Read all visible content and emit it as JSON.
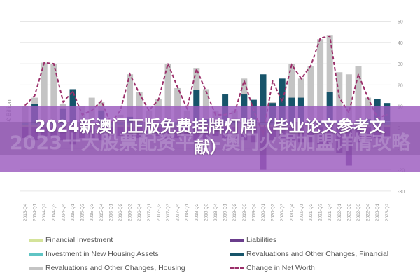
{
  "chart_data": {
    "type": "bar",
    "ylabel": "€ Billion",
    "ylim": [
      -30,
      50
    ],
    "yticks": [
      50,
      40,
      30,
      20,
      10,
      0,
      -10,
      -20,
      -30
    ],
    "grid": true,
    "legend_position": "bottom",
    "categories": [
      "2013-Q4",
      "2014-Q1",
      "2014-Q2",
      "2014-Q3",
      "2014-Q4",
      "2015-Q1",
      "2015-Q2",
      "2015-Q3",
      "2015-Q4",
      "2016-Q1",
      "2016-Q2",
      "2016-Q3",
      "2016-Q4",
      "2017-Q1",
      "2017-Q2",
      "2017-Q3",
      "2017-Q4",
      "2018-Q1",
      "2018-Q2",
      "2018-Q3",
      "2018-Q4",
      "2019-Q1",
      "2019-Q2",
      "2019-Q3",
      "2019-Q4",
      "2020-Q1",
      "2020-Q2",
      "2020-Q3",
      "2020-Q4",
      "2021-Q1",
      "2021-Q2",
      "2021-Q3",
      "2021-Q4",
      "2022-Q1",
      "2022-Q2",
      "2022-Q3",
      "2022-Q4",
      "2023-Q1",
      "2023-Q2"
    ],
    "series": [
      {
        "name": "Financial Investment",
        "kind": "bar",
        "color": "#d4e39a",
        "values": [
          1,
          1,
          1,
          1,
          1,
          1,
          1,
          1,
          1,
          1,
          1,
          1,
          1,
          1,
          1,
          1,
          1,
          1,
          1,
          1,
          1,
          1,
          1,
          1,
          1,
          1,
          1,
          1,
          1,
          1,
          1,
          1,
          1,
          1,
          1,
          1,
          1,
          1,
          1
        ]
      },
      {
        "name": "Investment in New Housing Assets",
        "kind": "bar",
        "color": "#5fc4c4",
        "values": [
          1,
          1,
          1,
          1,
          1,
          1,
          1,
          1,
          1,
          1,
          1,
          1,
          1,
          1,
          1,
          1,
          1,
          1,
          1,
          1,
          1,
          1,
          1,
          1,
          1,
          1,
          1,
          1,
          1,
          1,
          1,
          1,
          1,
          2,
          2,
          2,
          2,
          2,
          2
        ]
      },
      {
        "name": "Revaluations and Other Changes, Housing",
        "kind": "bar",
        "color": "#c4c4c4",
        "values": [
          10,
          14,
          30.5,
          30,
          11,
          5,
          10,
          14,
          12,
          3,
          6,
          25,
          16.5,
          8,
          13.5,
          30,
          18.5,
          8,
          28,
          18,
          8,
          5,
          8,
          23,
          10,
          3,
          12,
          12,
          30,
          23,
          29,
          41.5,
          43.5,
          26,
          25,
          29,
          14,
          5,
          5
        ]
      },
      {
        "name": "Revaluations and Other Changes, Financial",
        "kind": "bar",
        "color": "#17546a",
        "values": [
          0,
          11,
          2,
          1,
          9,
          18,
          0,
          0,
          8,
          0,
          2,
          5,
          2,
          2,
          1,
          3,
          2,
          2,
          17.5,
          4,
          2,
          15.5,
          3,
          15.5,
          13,
          25,
          11.5,
          23,
          14,
          14,
          3,
          3,
          16.5,
          3,
          2,
          3,
          4,
          13.5,
          11.5
        ]
      },
      {
        "name": "Liabilities",
        "kind": "bar",
        "color": "#6a3d8c",
        "values": [
          -5,
          -6,
          -4,
          -4,
          -6,
          -8,
          -5,
          -5,
          -6,
          -4,
          -4,
          -5,
          -5,
          -4,
          -4,
          -5,
          -5,
          -4,
          -6,
          -6,
          -4,
          -5,
          -5,
          -6,
          -7,
          -20,
          -6,
          -6,
          -7,
          -7,
          -7,
          -8,
          -8,
          -12,
          -18,
          -7,
          -7,
          -5,
          -5
        ]
      },
      {
        "name": "Change in Net Worth",
        "kind": "line",
        "color": "#9b2f6a",
        "values": [
          10.5,
          15,
          30.5,
          30,
          12,
          17,
          6,
          8,
          12.5,
          2,
          8,
          25,
          16,
          8,
          13,
          30,
          19,
          9,
          27.5,
          17,
          6,
          6,
          7,
          22,
          8,
          -3,
          22,
          12,
          29.5,
          23,
          29,
          42,
          43,
          14,
          7,
          25,
          14,
          4.5,
          6
        ]
      }
    ]
  },
  "overlay": {
    "headline": "2024新澳门正版免费挂牌灯牌（毕业论文参考文献）",
    "watermark": "2023十大股票配资平台-澳门火锅加盟详情攻略"
  },
  "legend": [
    {
      "label": "Financial Investment",
      "color": "#d4e39a"
    },
    {
      "label": "Liabilities",
      "color": "#6a3d8c"
    },
    {
      "label": "Investment in New Housing Assets",
      "color": "#5fc4c4"
    },
    {
      "label": "Revaluations and Other Changes, Financial",
      "color": "#17546a"
    },
    {
      "label": "Revaluations and Other Changes, Housing",
      "color": "#c4c4c4"
    },
    {
      "label": "Change in Net Worth",
      "color": "#9b2f6a"
    }
  ]
}
